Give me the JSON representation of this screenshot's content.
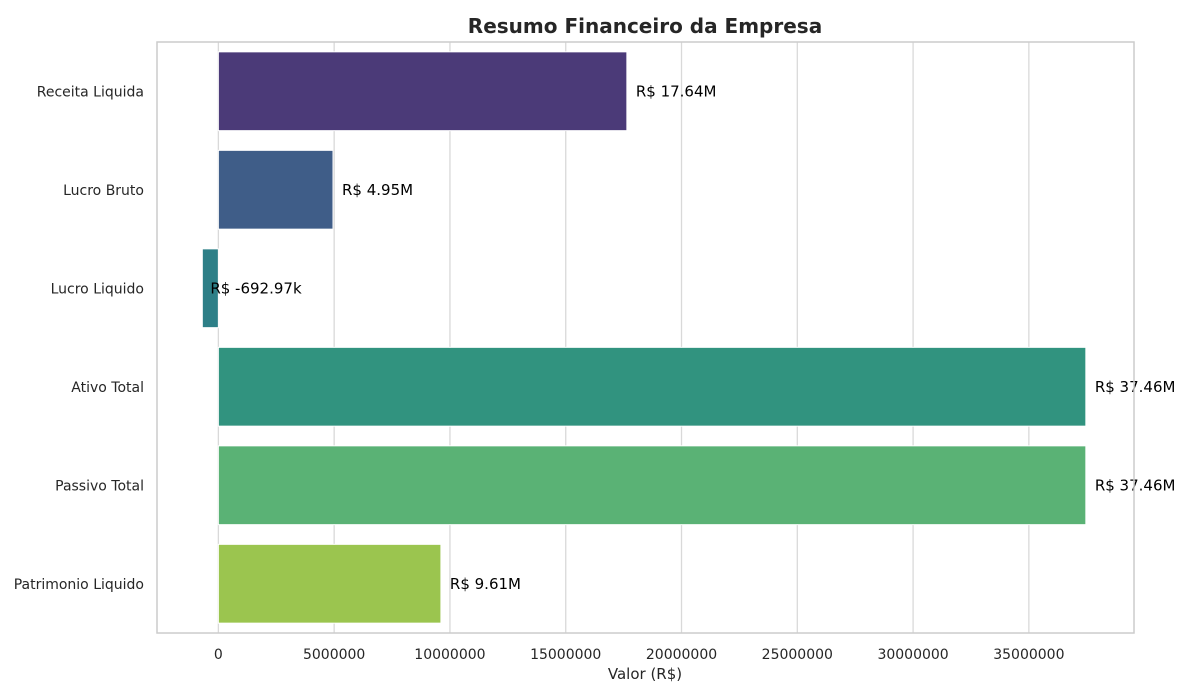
{
  "chart_data": {
    "type": "bar",
    "orientation": "horizontal",
    "title": "Resumo Financeiro da Empresa",
    "xlabel": "Valor (R$)",
    "ylabel": "",
    "categories": [
      "Receita Liquida",
      "Lucro Bruto",
      "Lucro Liquido",
      "Ativo Total",
      "Passivo Total",
      "Patrimonio Liquido"
    ],
    "values": [
      17640000,
      4950000,
      -692970,
      37460000,
      37460000,
      9610000
    ],
    "value_labels": [
      "R$ 17.64M",
      "R$ 4.95M",
      "R$ -692.97k",
      "R$ 37.46M",
      "R$ 37.46M",
      "R$ 9.61M"
    ],
    "colors": [
      "#4b3a78",
      "#3f5d88",
      "#2d7f87",
      "#31937f",
      "#5ab275",
      "#9bc54f"
    ],
    "xlim": [
      -2650000,
      39540000
    ],
    "xticks": [
      0,
      5000000,
      10000000,
      15000000,
      20000000,
      25000000,
      30000000,
      35000000
    ],
    "xtick_labels": [
      "0",
      "5000000",
      "10000000",
      "15000000",
      "20000000",
      "25000000",
      "30000000",
      "35000000"
    ],
    "grid": "vertical"
  }
}
